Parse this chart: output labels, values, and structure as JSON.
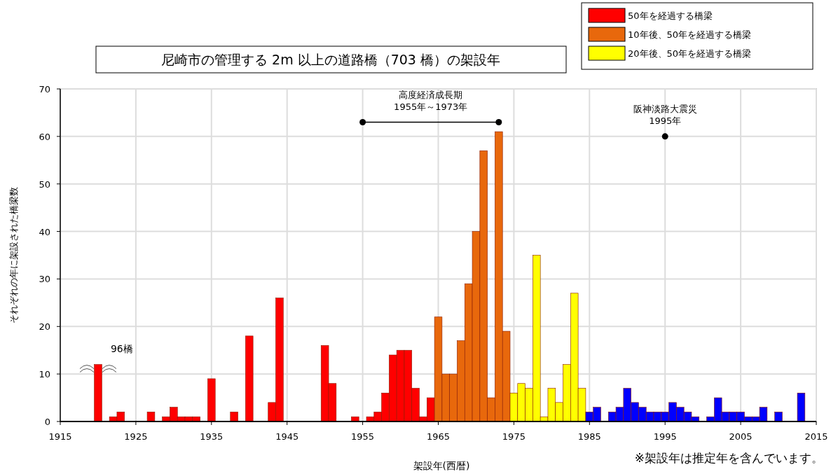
{
  "chart_data": {
    "type": "bar",
    "title": "尼崎市の管理する 2m 以上の道路橋（703 橋）の架設年",
    "xlabel": "架設年(西暦)",
    "ylabel": "それぞれの年に架設された橋梁数",
    "series": [
      {
        "name": "50年を経過する橋梁",
        "color": "#ff0000",
        "x": [
          1920,
          1922,
          1923,
          1927,
          1929,
          1930,
          1931,
          1932,
          1933,
          1935,
          1938,
          1940,
          1943,
          1944,
          1950,
          1951,
          1954,
          1956,
          1957,
          1958,
          1959,
          1960,
          1961,
          1962,
          1963,
          1964
        ],
        "values": [
          12,
          1,
          2,
          2,
          1,
          3,
          1,
          1,
          1,
          9,
          2,
          18,
          4,
          26,
          16,
          8,
          1,
          1,
          2,
          6,
          14,
          15,
          15,
          7,
          1,
          5
        ]
      },
      {
        "name": "10年後、50年を経過する橋梁",
        "color": "#e8680c",
        "x": [
          1965,
          1966,
          1967,
          1968,
          1969,
          1970,
          1971,
          1972,
          1973,
          1974
        ],
        "values": [
          22,
          10,
          10,
          17,
          29,
          40,
          57,
          5,
          61,
          19
        ]
      },
      {
        "name": "20年後、50年を経過する橋梁",
        "color": "#ffff00",
        "x": [
          1975,
          1976,
          1977,
          1978,
          1979,
          1980,
          1981,
          1982,
          1983,
          1984
        ],
        "values": [
          6,
          8,
          7,
          35,
          1,
          7,
          4,
          12,
          27,
          7
        ]
      },
      {
        "type": "line",
        "marker": "circle",
        "color": "#000000",
        "x": [
          1955,
          1973
        ],
        "values": [
          63,
          63
        ]
      },
      {
        "color": "#0000ff",
        "x": [
          1985,
          1986,
          1988,
          1989,
          1990,
          1991,
          1992,
          1993,
          1994,
          1995,
          1996,
          1997,
          1998,
          1999,
          2001,
          2002,
          2003,
          2004,
          2005,
          2006,
          2007,
          2008,
          2010,
          2013
        ],
        "values": [
          2,
          3,
          2,
          3,
          7,
          4,
          3,
          2,
          2,
          2,
          4,
          3,
          2,
          1,
          1,
          5,
          2,
          2,
          2,
          1,
          1,
          3,
          2,
          6
        ]
      }
    ],
    "xlim": [
      1915,
      2015
    ],
    "xticks": [
      1915,
      1925,
      1935,
      1945,
      1955,
      1965,
      1975,
      1985,
      1995,
      2005,
      2015
    ],
    "ylim": [
      0,
      70
    ],
    "yticks": [
      0,
      10,
      20,
      30,
      40,
      50,
      60,
      70
    ],
    "grid": true,
    "legend": "top right",
    "annotations": [
      {
        "text": "高度経済成長期\n1955年～1973年",
        "x": 1964,
        "y": 63
      },
      {
        "text": "96橋",
        "x": 1920,
        "y": 12
      },
      {
        "text": "阪神淡路大震災\n1995年",
        "x": 1995,
        "y": 60
      },
      "※架設年は推定年を含んでいます。"
    ]
  }
}
